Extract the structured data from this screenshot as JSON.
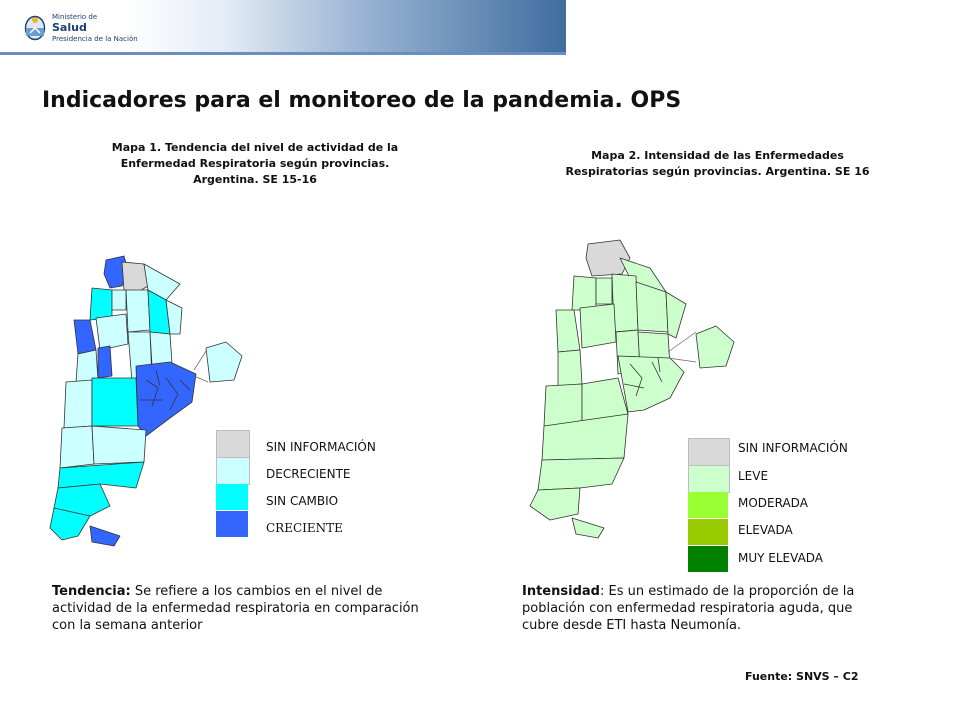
{
  "header": {
    "logo_line1": "Ministerio de",
    "logo_line2": "Salud",
    "logo_line3": "Presidencia de la Nación"
  },
  "page_title": "Indicadores para el monitoreo de la pandemia. OPS",
  "map1": {
    "title_lines": [
      "Mapa 1. Tendencia del nivel de actividad de la",
      "Enfermedad Respiratoria según provincias.",
      "Argentina. SE 15-16"
    ],
    "legend": [
      {
        "label": "SIN INFORMACIÓN",
        "color": "#d9d9d9"
      },
      {
        "label": "DECRECIENTE",
        "color": "#ccffff"
      },
      {
        "label": "SIN CAMBIO",
        "color": "#00ffff"
      },
      {
        "label": "CRECIENTE",
        "color": "#3366ff"
      }
    ]
  },
  "map2": {
    "title_lines": [
      "Mapa 2. Intensidad de las Enfermedades",
      "Respiratorias según provincias. Argentina. SE 16"
    ],
    "legend": [
      {
        "label": "SIN INFORMACIÓN",
        "color": "#d9d9d9"
      },
      {
        "label": "LEVE",
        "color": "#ccffcc"
      },
      {
        "label": "MODERADA",
        "color": "#99ff33"
      },
      {
        "label": "ELEVADA",
        "color": "#99cc00"
      },
      {
        "label": "MUY ELEVADA",
        "color": "#008000"
      }
    ]
  },
  "notes": {
    "tendencia_term": "Tendencia:",
    "tendencia_text": " Se refiere a los cambios en el nivel de actividad de la enfermedad respiratoria en comparación con la semana anterior",
    "intensidad_term": "Intensidad",
    "intensidad_text": ": Es un estimado de la proporción de la población con enfermedad respiratoria aguda, que cubre desde ETI hasta Neumonía."
  },
  "source": "Fuente: SNVS – C2"
}
